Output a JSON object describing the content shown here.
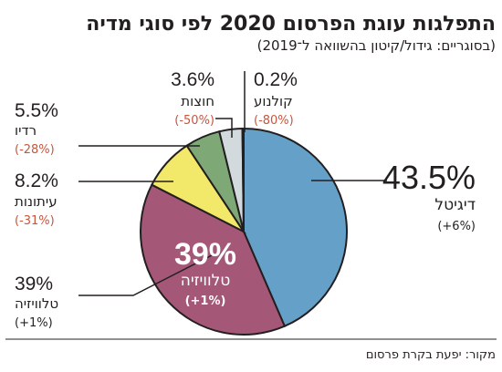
{
  "title": "התפלגות עוגת הפרסום 2020 לפי סוגי מדיה",
  "subtitle": "(בסוגריים: גידול/קיטון בהשוואה ל־2019)",
  "source": "מקור: יפעת בקרת פרסום",
  "colors": {
    "positive": "#231f20",
    "negative": "#c8553d"
  },
  "chart_data": {
    "type": "pie",
    "title": "התפלגות עוגת הפרסום 2020 לפי סוגי מדיה",
    "subtitle": "(בסוגריים: גידול/קיטון בהשוואה ל־2019)",
    "unit": "%",
    "slices": [
      {
        "key": "digital",
        "label": "דיגיטל",
        "value": 43.5,
        "pct": "43.5%",
        "change": "(+6%)",
        "change_sign": "positive",
        "color": "#64a0c8"
      },
      {
        "key": "tv",
        "label": "טלוויזיה",
        "value": 39,
        "pct": "39%",
        "change": "(+1%)",
        "change_sign": "positive",
        "color": "#a55777"
      },
      {
        "key": "newspapers",
        "label": "עיתונות",
        "value": 8.2,
        "pct": "8.2%",
        "change": "(-31%)",
        "change_sign": "negative",
        "color": "#f2e86a"
      },
      {
        "key": "radio",
        "label": "רדיו",
        "value": 5.5,
        "pct": "5.5%",
        "change": "(-28%)",
        "change_sign": "negative",
        "color": "#7fa877"
      },
      {
        "key": "outdoor",
        "label": "חוצות",
        "value": 3.6,
        "pct": "3.6%",
        "change": "(-50%)",
        "change_sign": "negative",
        "color": "#d3dadd"
      },
      {
        "key": "cinema",
        "label": "קולנוע",
        "value": 0.2,
        "pct": "0.2%",
        "change": "(-80%)",
        "change_sign": "negative",
        "color": "#3a3a3a"
      }
    ]
  }
}
